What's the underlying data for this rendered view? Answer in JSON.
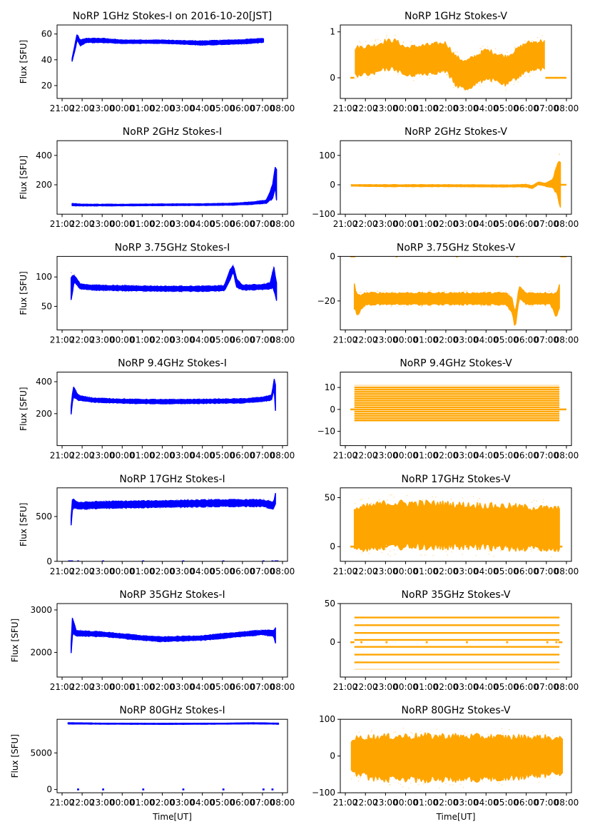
{
  "chart_data": {
    "type": "scatter",
    "layout": "7 rows x 2 columns",
    "xlabel": "Time[UT]",
    "x_unit": "hours after 21:00 UT",
    "x_ticks": [
      "21:00",
      "22:00",
      "23:00",
      "00:00",
      "01:00",
      "02:00",
      "03:00",
      "04:00",
      "05:00",
      "06:00",
      "07:00",
      "08:00"
    ],
    "xlim": [
      -0.25,
      11.25
    ],
    "panels": [
      {
        "id": "1ghz-i",
        "title": "NoRP 1GHz Stokes-I on 2016-10-20[JST]",
        "ylabel": "Flux [SFU]",
        "color": "#0000ff",
        "ylim": [
          10,
          67
        ],
        "yticks": [
          20,
          40,
          60
        ],
        "bands": [
          [
            0.5,
            40,
            1
          ],
          [
            0.65,
            50,
            2
          ],
          [
            0.75,
            58,
            2
          ],
          [
            0.9,
            53,
            2
          ],
          [
            1.2,
            55,
            1.5
          ],
          [
            2,
            55,
            1.5
          ],
          [
            3,
            54,
            1.2
          ],
          [
            5,
            54,
            1.2
          ],
          [
            6,
            53.5,
            1.2
          ],
          [
            7,
            53,
            1.5
          ],
          [
            8,
            53.5,
            1.5
          ],
          [
            9,
            54,
            1.5
          ],
          [
            10,
            55,
            1.5
          ],
          [
            10.05,
            55,
            1.5
          ]
        ],
        "zeros": []
      },
      {
        "id": "1ghz-v",
        "title": "NoRP 1GHz Stokes-V",
        "ylabel": "",
        "color": "#ffa500",
        "ylim": [
          -0.45,
          1.15
        ],
        "yticks": [
          0,
          1
        ],
        "bands": [
          [
            0.5,
            0.35,
            0.3
          ],
          [
            1.5,
            0.4,
            0.3
          ],
          [
            2,
            0.5,
            0.3
          ],
          [
            2.5,
            0.5,
            0.3
          ],
          [
            3,
            0.35,
            0.3
          ],
          [
            4,
            0.4,
            0.3
          ],
          [
            5,
            0.45,
            0.3
          ],
          [
            5.5,
            0.15,
            0.3
          ],
          [
            6,
            0.05,
            0.3
          ],
          [
            7,
            0.3,
            0.3
          ],
          [
            8,
            0.15,
            0.3
          ],
          [
            9,
            0.45,
            0.3
          ],
          [
            9.9,
            0.5,
            0.3
          ]
        ],
        "zeros": [
          [
            0.25,
            0.45
          ],
          [
            9.95,
            11.0
          ]
        ]
      },
      {
        "id": "2ghz-i",
        "title": "NoRP 2GHz Stokes-I",
        "ylabel": "Flux [SFU]",
        "color": "#0000ff",
        "ylim": [
          0,
          500
        ],
        "yticks": [
          200,
          400
        ],
        "bands": [
          [
            0.5,
            65,
            8
          ],
          [
            1,
            62,
            5
          ],
          [
            3,
            62,
            5
          ],
          [
            5,
            64,
            5
          ],
          [
            7,
            65,
            5
          ],
          [
            8.5,
            68,
            6
          ],
          [
            9.5,
            75,
            8
          ],
          [
            10.2,
            85,
            10
          ],
          [
            10.5,
            150,
            40
          ],
          [
            10.65,
            260,
            60
          ],
          [
            10.7,
            200,
            100
          ]
        ],
        "zeros": []
      },
      {
        "id": "2ghz-v",
        "title": "NoRP 2GHz Stokes-V",
        "ylabel": "",
        "color": "#ffa500",
        "ylim": [
          -100,
          150
        ],
        "yticks": [
          -100,
          0,
          100
        ],
        "bands": [
          [
            0.3,
            -2,
            2
          ],
          [
            2,
            -3,
            3
          ],
          [
            5,
            -3,
            3
          ],
          [
            8,
            -4,
            3
          ],
          [
            9,
            -3,
            4
          ],
          [
            9.3,
            -8,
            5
          ],
          [
            9.6,
            5,
            4
          ],
          [
            10,
            0,
            5
          ],
          [
            10.35,
            5,
            15
          ],
          [
            10.55,
            20,
            60
          ],
          [
            10.7,
            0,
            80
          ]
        ],
        "zeros": [
          [
            10.7,
            11.0
          ]
        ]
      },
      {
        "id": "3.75ghz-i",
        "title": "NoRP 3.75GHz Stokes-I",
        "ylabel": "Flux [SFU]",
        "color": "#0000ff",
        "ylim": [
          10,
          135
        ],
        "yticks": [
          50,
          100
        ],
        "bands": [
          [
            0.45,
            80,
            20
          ],
          [
            0.6,
            98,
            5
          ],
          [
            0.9,
            84,
            4
          ],
          [
            1.5,
            82,
            4
          ],
          [
            3,
            81,
            4
          ],
          [
            5,
            80,
            4
          ],
          [
            7,
            80,
            4
          ],
          [
            8.1,
            81,
            4
          ],
          [
            8.4,
            105,
            8
          ],
          [
            8.55,
            115,
            6
          ],
          [
            8.7,
            90,
            6
          ],
          [
            9,
            82,
            4
          ],
          [
            10,
            83,
            4
          ],
          [
            10.4,
            85,
            5
          ],
          [
            10.55,
            100,
            18
          ],
          [
            10.7,
            75,
            15
          ]
        ],
        "zeros": []
      },
      {
        "id": "3.75ghz-v",
        "title": "NoRP 3.75GHz Stokes-V",
        "ylabel": "",
        "color": "#ffa500",
        "ylim": [
          -33,
          0
        ],
        "yticks": [
          -20,
          0
        ],
        "bands": [
          [
            0.45,
            -18,
            5
          ],
          [
            0.6,
            -22,
            4
          ],
          [
            1,
            -19,
            2.5
          ],
          [
            3,
            -19,
            2.5
          ],
          [
            5,
            -19,
            2.5
          ],
          [
            8,
            -19,
            2.5
          ],
          [
            8.3,
            -22,
            3
          ],
          [
            8.45,
            -29,
            3
          ],
          [
            8.65,
            -16,
            2.5
          ],
          [
            9,
            -19,
            2.5
          ],
          [
            10.2,
            -19,
            2.5
          ],
          [
            10.5,
            -22,
            5
          ],
          [
            10.65,
            -18,
            6
          ]
        ],
        "zeros": [
          [
            0.25,
            0.5
          ],
          [
            2.5,
            2.6
          ],
          [
            5.5,
            5.6
          ],
          [
            8.5,
            8.6
          ],
          [
            10.7,
            11.0
          ]
        ]
      },
      {
        "id": "9.4ghz-i",
        "title": "NoRP 9.4GHz Stokes-I",
        "ylabel": "Flux [SFU]",
        "color": "#0000ff",
        "ylim": [
          0,
          460
        ],
        "yticks": [
          200,
          400
        ],
        "bands": [
          [
            0.45,
            220,
            20
          ],
          [
            0.55,
            340,
            30
          ],
          [
            0.8,
            300,
            15
          ],
          [
            1.5,
            285,
            12
          ],
          [
            3,
            278,
            12
          ],
          [
            5,
            275,
            12
          ],
          [
            7,
            277,
            12
          ],
          [
            9,
            280,
            12
          ],
          [
            10,
            290,
            12
          ],
          [
            10.45,
            300,
            15
          ],
          [
            10.6,
            390,
            30
          ],
          [
            10.65,
            300,
            80
          ]
        ],
        "zeros": []
      },
      {
        "id": "9.4ghz-v",
        "title": "NoRP 9.4GHz Stokes-V",
        "ylabel": "",
        "color": "#ffa500",
        "ylim": [
          -16.5,
          17
        ],
        "yticks": [
          -10,
          0,
          10
        ],
        "levels": [
          -5,
          -4,
          -3,
          -2,
          -1,
          1,
          2,
          3,
          4,
          5,
          6,
          7,
          8,
          9,
          10,
          11
        ],
        "bands": [
          [
            0.45,
            3,
            9
          ],
          [
            10.65,
            3,
            9
          ]
        ],
        "zeros": [
          [
            0.25,
            11.0
          ]
        ]
      },
      {
        "id": "17ghz-i",
        "title": "NoRP 17GHz Stokes-I",
        "ylabel": "Flux [SFU]",
        "color": "#0000ff",
        "ylim": [
          0,
          820
        ],
        "yticks": [
          0,
          500
        ],
        "bands": [
          [
            0.45,
            450,
            50
          ],
          [
            0.52,
            650,
            50
          ],
          [
            0.8,
            620,
            35
          ],
          [
            2,
            630,
            35
          ],
          [
            5,
            640,
            35
          ],
          [
            8,
            650,
            35
          ],
          [
            10,
            650,
            35
          ],
          [
            10.55,
            620,
            35
          ],
          [
            10.65,
            700,
            50
          ]
        ],
        "zeros": [
          [
            0.3,
            0.55
          ],
          [
            0.75,
            0.85
          ],
          [
            2,
            2.1
          ],
          [
            4,
            4.1
          ],
          [
            6,
            6.1
          ],
          [
            8,
            8.1
          ],
          [
            10,
            10.1
          ],
          [
            10.45,
            10.55
          ],
          [
            10.6,
            10.8
          ]
        ]
      },
      {
        "id": "17ghz-v",
        "title": "NoRP 17GHz Stokes-V",
        "ylabel": "",
        "color": "#ffa500",
        "ylim": [
          -15,
          60
        ],
        "yticks": [
          0,
          50
        ],
        "bands": [
          [
            0.45,
            18,
            20
          ],
          [
            2,
            22,
            22
          ],
          [
            4,
            22,
            22
          ],
          [
            6,
            21,
            21
          ],
          [
            8,
            20,
            21
          ],
          [
            10.65,
            18,
            20
          ]
        ],
        "zeros": [
          [
            0.25,
            0.45
          ],
          [
            0.75,
            0.85
          ],
          [
            2,
            2.1
          ],
          [
            4,
            4.1
          ],
          [
            6,
            6.1
          ],
          [
            8,
            8.1
          ],
          [
            10,
            10.1
          ],
          [
            10.55,
            10.8
          ]
        ]
      },
      {
        "id": "35ghz-i",
        "title": "NoRP 35GHz Stokes-I",
        "ylabel": "Flux [SFU]",
        "color": "#0000ff",
        "ylim": [
          1420,
          3150
        ],
        "yticks": [
          2000,
          3000
        ],
        "bands": [
          [
            0.45,
            2100,
            100
          ],
          [
            0.52,
            2650,
            200
          ],
          [
            0.7,
            2450,
            60
          ],
          [
            2,
            2430,
            50
          ],
          [
            4,
            2340,
            50
          ],
          [
            5,
            2310,
            50
          ],
          [
            7,
            2340,
            50
          ],
          [
            9,
            2430,
            50
          ],
          [
            10,
            2470,
            50
          ],
          [
            10.55,
            2450,
            60
          ],
          [
            10.65,
            2400,
            200
          ]
        ],
        "zeros": []
      },
      {
        "id": "35ghz-v",
        "title": "NoRP 35GHz Stokes-V",
        "ylabel": "",
        "color": "#ffa500",
        "ylim": [
          -45,
          50
        ],
        "yticks": [
          0,
          50
        ],
        "levels": [
          -35,
          -26,
          -16,
          -6,
          3,
          12,
          22,
          32
        ],
        "bands": [
          [
            0.45,
            0,
            0
          ],
          [
            10.65,
            0,
            0
          ]
        ],
        "zeros": [
          [
            0.25,
            0.45
          ],
          [
            0.75,
            0.85
          ],
          [
            2,
            2.1
          ],
          [
            4,
            4.1
          ],
          [
            6,
            6.1
          ],
          [
            8,
            8.1
          ],
          [
            10,
            10.1
          ],
          [
            10.45,
            10.55
          ],
          [
            10.6,
            10.8
          ]
        ]
      },
      {
        "id": "80ghz-i",
        "title": "NoRP 80GHz Stokes-I",
        "ylabel": "Flux [SFU]",
        "color": "#0000ff",
        "ylim": [
          -450,
          9600
        ],
        "yticks": [
          0,
          5000
        ],
        "bands": [
          [
            0.3,
            9050,
            80
          ],
          [
            2,
            9000,
            60
          ],
          [
            5,
            8980,
            60
          ],
          [
            8,
            9000,
            60
          ],
          [
            9.5,
            9050,
            70
          ],
          [
            10.8,
            9000,
            70
          ]
        ],
        "zeros": [
          [
            0.75,
            0.85
          ],
          [
            2,
            2.1
          ],
          [
            4,
            4.1
          ],
          [
            6,
            6.1
          ],
          [
            8,
            8.1
          ],
          [
            10,
            10.1
          ],
          [
            10.45,
            10.55
          ]
        ]
      },
      {
        "id": "80ghz-v",
        "title": "NoRP 80GHz Stokes-V",
        "ylabel": "",
        "color": "#ffa500",
        "ylim": [
          -100,
          100
        ],
        "yticks": [
          -100,
          0,
          100
        ],
        "bands": [
          [
            0.3,
            0,
            45
          ],
          [
            0.9,
            0,
            50
          ],
          [
            1.2,
            -5,
            55
          ],
          [
            3,
            -5,
            58
          ],
          [
            5,
            -5,
            58
          ],
          [
            8,
            -5,
            55
          ],
          [
            10,
            0,
            50
          ],
          [
            10.8,
            0,
            45
          ]
        ],
        "zeros": []
      }
    ]
  }
}
